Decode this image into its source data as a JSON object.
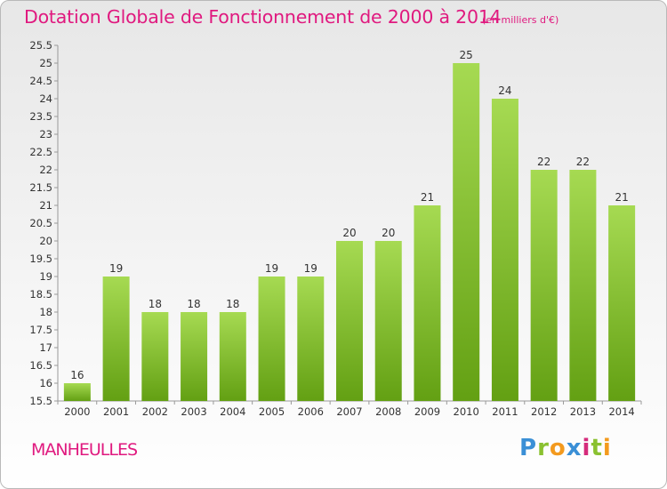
{
  "header": {
    "title": "Dotation Globale de Fonctionnement de 2000 à 2014",
    "unit": "(en milliers d'€)"
  },
  "footer": {
    "commune": "MANHEULLES",
    "logo": {
      "p": "P",
      "r": "r",
      "o": "o",
      "x": "x",
      "i1": "i",
      "t": "t",
      "i2": "i"
    }
  },
  "colors": {
    "bar_light": "#a6da52",
    "bar_dark": "#63a013",
    "text": "#333333",
    "accent": "#e0197f"
  },
  "chart_data": {
    "type": "bar",
    "title": "Dotation Globale de Fonctionnement de 2000 à 2014",
    "subtitle": "(en milliers d'€)",
    "xlabel": "",
    "ylabel": "",
    "categories": [
      "2000",
      "2001",
      "2002",
      "2003",
      "2004",
      "2005",
      "2006",
      "2007",
      "2008",
      "2009",
      "2010",
      "2011",
      "2012",
      "2013",
      "2014"
    ],
    "values": [
      16,
      19,
      18,
      18,
      18,
      19,
      19,
      20,
      20,
      21,
      25,
      24,
      22,
      22,
      21
    ],
    "ylim": [
      15.5,
      25.5
    ],
    "yticks": [
      "15.5",
      "16",
      "16.5",
      "17",
      "17.5",
      "18",
      "18.5",
      "19",
      "19.5",
      "20",
      "20.5",
      "21",
      "21.5",
      "22",
      "22.5",
      "23",
      "23.5",
      "24",
      "24.5",
      "25",
      "25.5"
    ],
    "grid": false,
    "legend": "none"
  }
}
